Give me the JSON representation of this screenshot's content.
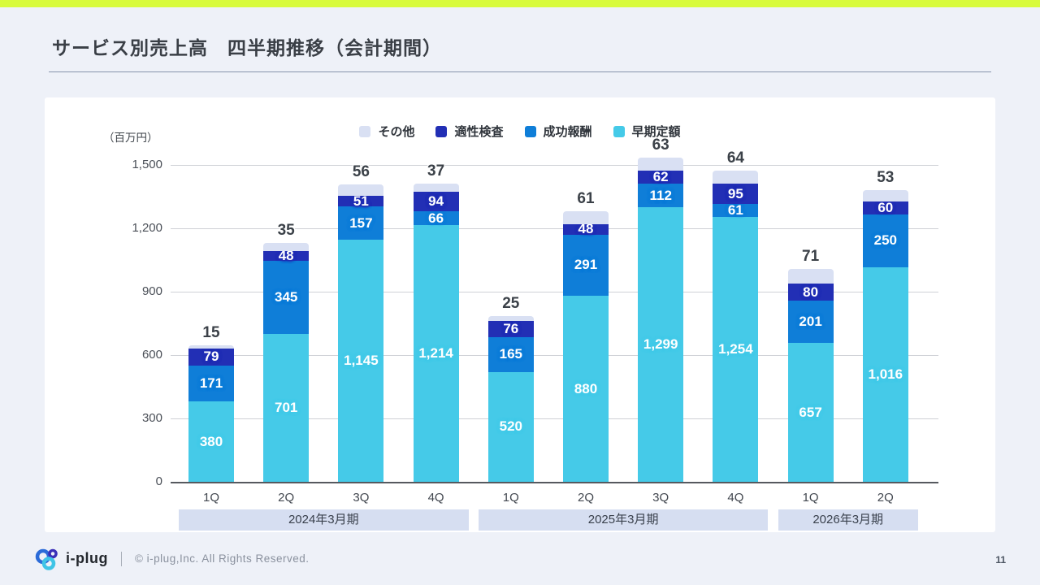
{
  "header": {
    "title": "サービス別売上高　四半期推移（会計期間）"
  },
  "footer": {
    "logo_text": "i-plug",
    "copyright": "© i-plug,Inc. All Rights Reserved.",
    "page_number": "11"
  },
  "colors": {
    "accent_strip": "#D8FB3C",
    "page_background": "#EEF1F8",
    "card_background": "#FFFFFF",
    "sonota": "#D9E0F3",
    "tekisei_kensa": "#222FB5",
    "seiko_hoshu": "#0F7ED8",
    "soki_teigaku": "#45CAE8",
    "period_band": "#D6DEF1"
  },
  "chart_data": {
    "type": "bar",
    "stacked": true,
    "title": "サービス別売上高 四半期推移（会計期間）",
    "unit_label": "（百万円）",
    "ylim": [
      0,
      1500
    ],
    "grid": true,
    "legend_position": "top-center",
    "yticks": [
      {
        "value": 0,
        "label": "0"
      },
      {
        "value": 300,
        "label": "300"
      },
      {
        "value": 600,
        "label": "600"
      },
      {
        "value": 900,
        "label": "900"
      },
      {
        "value": 1200,
        "label": "1,200"
      },
      {
        "value": 1500,
        "label": "1,500"
      }
    ],
    "legend": [
      {
        "label": "その他",
        "color": "#D9E0F3"
      },
      {
        "label": "適性検査",
        "color": "#222FB5"
      },
      {
        "label": "成功報酬",
        "color": "#0F7ED8"
      },
      {
        "label": "早期定額",
        "color": "#45CAE8"
      }
    ],
    "categories": [
      "1Q",
      "2Q",
      "3Q",
      "4Q",
      "1Q",
      "2Q",
      "3Q",
      "4Q",
      "1Q",
      "2Q"
    ],
    "groups": [
      {
        "label": "2024年3月期",
        "span": 4
      },
      {
        "label": "2025年3月期",
        "span": 4
      },
      {
        "label": "2026年3月期",
        "span": 2
      }
    ],
    "series": [
      {
        "name": "早期定額",
        "color": "#45CAE8",
        "label_position": "inside",
        "values": [
          380,
          701,
          1145,
          1214,
          520,
          880,
          1299,
          1254,
          657,
          1016
        ]
      },
      {
        "name": "成功報酬",
        "color": "#0F7ED8",
        "label_position": "inside",
        "values": [
          171,
          345,
          157,
          66,
          165,
          291,
          112,
          61,
          201,
          250
        ]
      },
      {
        "name": "適性検査",
        "color": "#222FB5",
        "label_position": "inside",
        "values": [
          79,
          48,
          51,
          94,
          76,
          48,
          62,
          95,
          80,
          60
        ]
      },
      {
        "name": "その他",
        "color": "#D9E0F3",
        "label_position": "above",
        "values": [
          15,
          35,
          56,
          37,
          25,
          61,
          63,
          64,
          71,
          53
        ]
      }
    ]
  }
}
